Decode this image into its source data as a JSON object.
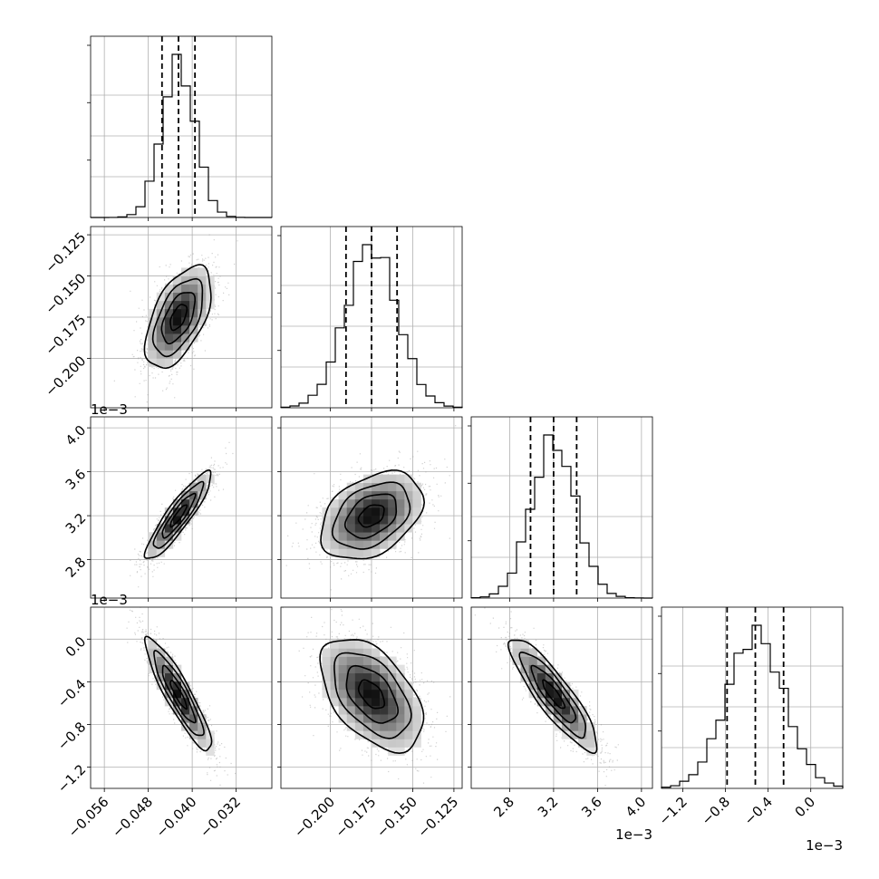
{
  "chart_data": {
    "type": "corner",
    "parameters": [
      {
        "index": 0,
        "mean": -0.0425,
        "sigma": 0.003,
        "quantiles": [
          -0.0455,
          -0.0425,
          -0.0395
        ],
        "range": [
          -0.0585,
          -0.0255
        ],
        "ticks": [
          -0.056,
          -0.048,
          -0.04,
          -0.032
        ],
        "tick_labels": [
          "−0.056",
          "−0.048",
          "−0.040",
          "−0.032"
        ],
        "offset_label": ""
      },
      {
        "index": 1,
        "mean": -0.175,
        "sigma": 0.0155,
        "quantiles": [
          -0.1905,
          -0.175,
          -0.1595
        ],
        "range": [
          -0.23,
          -0.12
        ],
        "ticks": [
          -0.2,
          -0.175,
          -0.15,
          -0.125
        ],
        "tick_labels": [
          "−0.200",
          "−0.175",
          "−0.150",
          "−0.125"
        ],
        "offset_label": ""
      },
      {
        "index": 2,
        "mean": 3.2,
        "sigma": 0.2,
        "quantiles": [
          2.99,
          3.2,
          3.41
        ],
        "range": [
          2.45,
          4.1
        ],
        "ticks": [
          2.8,
          3.2,
          3.6,
          4.0
        ],
        "tick_labels": [
          "2.8",
          "3.2",
          "3.6",
          "4.0"
        ],
        "offset_label": "1e−3"
      },
      {
        "index": 3,
        "mean": -0.52,
        "sigma": 0.265,
        "quantiles": [
          -0.785,
          -0.52,
          -0.255
        ],
        "range": [
          -1.4,
          0.3
        ],
        "ticks": [
          -1.2,
          -0.8,
          -0.4,
          0.0
        ],
        "tick_labels": [
          "−1.2",
          "−0.8",
          "−0.4",
          "0.0"
        ],
        "offset_label": "1e−3"
      }
    ],
    "correlations": [
      {
        "pair": [
          0,
          1
        ],
        "rho": 0.55
      },
      {
        "pair": [
          0,
          2
        ],
        "rho": 0.9
      },
      {
        "pair": [
          1,
          2
        ],
        "rho": 0.38
      },
      {
        "pair": [
          0,
          3
        ],
        "rho": -0.9
      },
      {
        "pair": [
          1,
          3
        ],
        "rho": -0.5
      },
      {
        "pair": [
          2,
          3
        ],
        "rho": -0.88
      }
    ],
    "contour_levels_sigma": [
      0.5,
      1.0,
      1.5,
      2.0
    ],
    "histogram_bins": 20,
    "grid": true,
    "colors": {
      "points": "#9a9a9a",
      "lines": "#000000",
      "grid": "#b0b0b0"
    }
  }
}
